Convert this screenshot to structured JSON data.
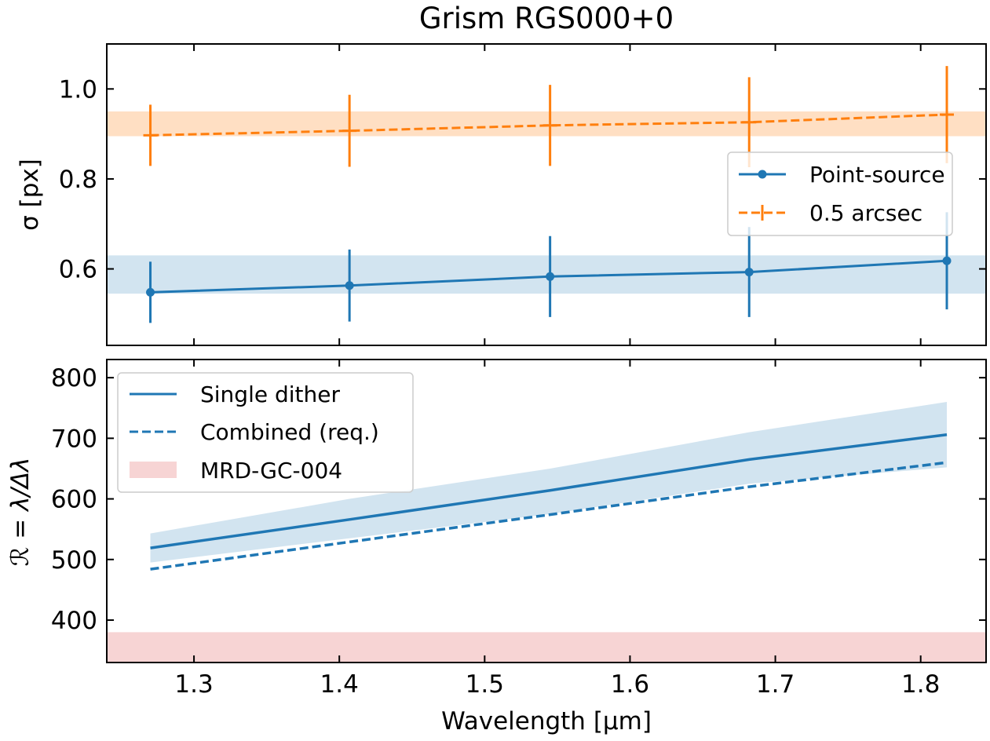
{
  "chart_data": {
    "title": "Grism RGS000+0",
    "xlabel": "Wavelength [μm]",
    "xlim": [
      1.24,
      1.845
    ],
    "xticks": [
      1.3,
      1.4,
      1.5,
      1.6,
      1.7,
      1.8
    ],
    "xtick_labels": [
      "1.3",
      "1.4",
      "1.5",
      "1.6",
      "1.7",
      "1.8"
    ],
    "panels": [
      {
        "type": "line",
        "ylabel": "σ [px]",
        "ylim": [
          0.43,
          1.1
        ],
        "yticks": [
          0.6,
          0.8,
          1.0
        ],
        "ytick_labels": [
          "0.6",
          "0.8",
          "1.0"
        ],
        "legend_position": "center-right",
        "bands": [
          {
            "name": "point-source-band",
            "ymin": 0.545,
            "ymax": 0.63,
            "color": "#1f77b4",
            "alpha": 0.2
          },
          {
            "name": "extended-band",
            "ymin": 0.895,
            "ymax": 0.95,
            "color": "#ff7f0e",
            "alpha": 0.25
          }
        ],
        "series": [
          {
            "name": "Point-source",
            "style": "solid",
            "marker": "circle",
            "color": "#1f77b4",
            "x": [
              1.27,
              1.407,
              1.545,
              1.682,
              1.818
            ],
            "y": [
              0.548,
              0.563,
              0.583,
              0.593,
              0.618
            ],
            "yerr": [
              0.068,
              0.08,
              0.09,
              0.1,
              0.108
            ]
          },
          {
            "name": "0.5 arcsec",
            "style": "dashed",
            "marker": "plus",
            "color": "#ff7f0e",
            "x": [
              1.27,
              1.407,
              1.545,
              1.682,
              1.818
            ],
            "y": [
              0.897,
              0.907,
              0.919,
              0.926,
              0.943
            ],
            "yerr": [
              0.068,
              0.08,
              0.09,
              0.1,
              0.108
            ]
          }
        ]
      },
      {
        "type": "line",
        "ylabel": "ℛ = λ/Δλ",
        "ylim": [
          330,
          830
        ],
        "yticks": [
          400,
          500,
          600,
          700,
          800
        ],
        "ytick_labels": [
          "400",
          "500",
          "600",
          "700",
          "800"
        ],
        "legend_position": "upper-left",
        "requirement_band": {
          "name": "MRD-GC-004",
          "ymin": 330,
          "ymax": 380,
          "color": "#d62728",
          "alpha": 0.2
        },
        "uncertainty_band": {
          "color": "#1f77b4",
          "alpha": 0.2,
          "x": [
            1.27,
            1.407,
            1.545,
            1.682,
            1.818
          ],
          "upper": [
            543,
            600,
            650,
            710,
            760
          ],
          "lower": [
            495,
            535,
            575,
            625,
            652
          ]
        },
        "series": [
          {
            "name": "Single dither",
            "style": "solid",
            "color": "#1f77b4",
            "x": [
              1.27,
              1.407,
              1.545,
              1.682,
              1.818
            ],
            "y": [
              519,
              566,
              614,
              665,
              706
            ]
          },
          {
            "name": "Combined (req.)",
            "style": "dashed",
            "color": "#1f77b4",
            "x": [
              1.27,
              1.407,
              1.545,
              1.682,
              1.818
            ],
            "y": [
              484,
              529,
              574,
              620,
              660
            ]
          }
        ],
        "legend": [
          "Single dither",
          "Combined (req.)",
          "MRD-GC-004"
        ]
      }
    ]
  }
}
